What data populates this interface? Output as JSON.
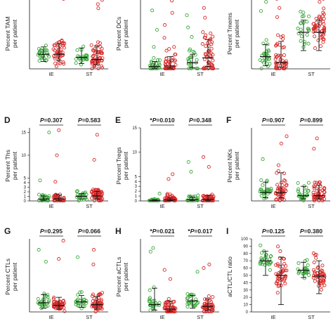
{
  "colors": {
    "ie_green": "#3aa63a",
    "st_red": "#d62828",
    "bar": "#111111"
  },
  "chart_data": [
    {
      "panel": "",
      "type": "scatter",
      "ylabel": "Percent TAM",
      "ylim": [
        0,
        70
      ],
      "yticks": [],
      "groups": [
        "IE",
        "ST"
      ],
      "cols": [
        {
          "group": "IE",
          "median": 14,
          "q1": 7,
          "q3": 21,
          "n": 28,
          "spread": 4,
          "outliers": []
        },
        {
          "group": "IE",
          "median": 14,
          "q1": 8,
          "q3": 24,
          "n": 45,
          "spread": 5,
          "outliers": [
            67
          ]
        },
        {
          "group": "ST",
          "median": 11,
          "q1": 5,
          "q3": 20,
          "n": 24,
          "spread": 4,
          "outliers": []
        },
        {
          "group": "ST",
          "median": 9,
          "q1": 4,
          "q3": 22,
          "n": 50,
          "spread": 5,
          "outliers": [
            58,
            62,
            66
          ]
        }
      ],
      "comparisons": []
    },
    {
      "panel": "",
      "type": "scatter",
      "ylabel": "Percent DCs",
      "ylim": [
        0,
        3
      ],
      "yticks": [],
      "groups": [
        "IE",
        "ST"
      ],
      "cols": [
        {
          "group": "IE",
          "median": 0.1,
          "q1": 0.02,
          "q3": 0.3,
          "n": 26,
          "spread": 0.3,
          "outliers": [
            0.9,
            1.6,
            2.4
          ]
        },
        {
          "group": "IE",
          "median": 0.12,
          "q1": 0.03,
          "q3": 0.5,
          "n": 45,
          "spread": 0.4,
          "outliers": [
            1.8,
            2.3,
            2.8
          ]
        },
        {
          "group": "ST",
          "median": 0.25,
          "q1": 0.05,
          "q3": 0.6,
          "n": 24,
          "spread": 0.4,
          "outliers": [
            1.7,
            2.2
          ]
        },
        {
          "group": "ST",
          "median": 0.45,
          "q1": 0.1,
          "q3": 1.2,
          "n": 50,
          "spread": 0.5,
          "outliers": [
            2.1,
            2.5,
            2.9
          ]
        }
      ],
      "comparisons": []
    },
    {
      "panel": "",
      "type": "scatter",
      "ylabel": "Percent Tmems",
      "ylim": [
        0,
        12
      ],
      "yticks": [],
      "groups": [
        "IE",
        "ST"
      ],
      "cols": [
        {
          "group": "IE",
          "median": 2,
          "q1": 0.5,
          "q3": 4,
          "n": 26,
          "spread": 1.2,
          "outliers": [
            9.5,
            11
          ]
        },
        {
          "group": "IE",
          "median": 1,
          "q1": 0.3,
          "q3": 4.5,
          "n": 45,
          "spread": 1.4,
          "outliers": [
            8.5,
            10,
            11.5
          ]
        },
        {
          "group": "ST",
          "median": 6,
          "q1": 3,
          "q3": 8,
          "n": 24,
          "spread": 1.5,
          "outliers": []
        },
        {
          "group": "ST",
          "median": 6,
          "q1": 3,
          "q3": 8,
          "n": 50,
          "spread": 1.6,
          "outliers": [
            11,
            11.5
          ]
        }
      ],
      "comparisons": []
    },
    {
      "panel": "D",
      "type": "scatter",
      "ylabel": "Percent Ths",
      "ylim": [
        0,
        16
      ],
      "yticks": [
        0,
        1,
        2,
        3,
        4,
        5,
        10,
        15
      ],
      "groups": [
        "IE",
        "ST"
      ],
      "cols": [
        {
          "group": "IE",
          "median": 0.4,
          "q1": 0.1,
          "q3": 1.1,
          "n": 26,
          "spread": 0.5,
          "outliers": [
            4.5,
            15
          ]
        },
        {
          "group": "IE",
          "median": 0.45,
          "q1": 0.1,
          "q3": 1.3,
          "n": 45,
          "spread": 0.6,
          "outliers": [
            4.2,
            10,
            15.5
          ]
        },
        {
          "group": "ST",
          "median": 1,
          "q1": 0.4,
          "q3": 1.6,
          "n": 24,
          "spread": 0.5,
          "outliers": []
        },
        {
          "group": "ST",
          "median": 1.1,
          "q1": 0.4,
          "q3": 2.1,
          "n": 50,
          "spread": 0.7,
          "outliers": [
            9,
            14.5
          ]
        }
      ],
      "comparisons": [
        {
          "group": "IE",
          "star": "",
          "p": "0.307"
        },
        {
          "group": "ST",
          "star": "",
          "p": "0.583"
        }
      ]
    },
    {
      "panel": "E",
      "type": "scatter",
      "ylabel": "Percent Tregs",
      "ylim": [
        0,
        15
      ],
      "yticks": [
        0,
        1,
        2,
        3,
        4,
        5,
        10,
        15
      ],
      "groups": [
        "IE",
        "ST"
      ],
      "cols": [
        {
          "group": "IE",
          "median": 0.08,
          "q1": 0.02,
          "q3": 0.25,
          "n": 26,
          "spread": 0.3,
          "outliers": [
            1.5
          ]
        },
        {
          "group": "IE",
          "median": 0.2,
          "q1": 0.05,
          "q3": 0.6,
          "n": 45,
          "spread": 0.5,
          "outliers": [
            4.5,
            5.5
          ]
        },
        {
          "group": "ST",
          "median": 0.25,
          "q1": 0.06,
          "q3": 0.8,
          "n": 24,
          "spread": 0.5,
          "outliers": [
            6,
            8
          ]
        },
        {
          "group": "ST",
          "median": 0.3,
          "q1": 0.08,
          "q3": 1.1,
          "n": 50,
          "spread": 0.6,
          "outliers": [
            7,
            9
          ]
        }
      ],
      "comparisons": [
        {
          "group": "IE",
          "star": "*",
          "p": "0.010"
        },
        {
          "group": "ST",
          "star": "",
          "p": "0.348"
        }
      ]
    },
    {
      "panel": "F",
      "type": "scatter",
      "ylabel": "Percent NKs",
      "ylim": [
        0,
        70
      ],
      "yticks": [],
      "groups": [
        "IE",
        "ST"
      ],
      "cols": [
        {
          "group": "IE",
          "median": 8,
          "q1": 3,
          "q3": 18,
          "n": 26,
          "spread": 3,
          "outliers": [
            40
          ]
        },
        {
          "group": "IE",
          "median": 8,
          "q1": 3,
          "q3": 27,
          "n": 45,
          "spread": 4,
          "outliers": [
            55,
            62
          ]
        },
        {
          "group": "ST",
          "median": 5,
          "q1": 2,
          "q3": 14,
          "n": 24,
          "spread": 3,
          "outliers": []
        },
        {
          "group": "ST",
          "median": 5,
          "q1": 2,
          "q3": 15,
          "n": 50,
          "spread": 4,
          "outliers": [
            50,
            60
          ]
        }
      ],
      "comparisons": [
        {
          "group": "IE",
          "star": "",
          "p": "0.907"
        },
        {
          "group": "ST",
          "star": "",
          "p": "0.899"
        }
      ]
    },
    {
      "panel": "G",
      "type": "scatter",
      "ylabel": "Percent CTLs",
      "ylim": [
        0,
        80
      ],
      "yticks": [],
      "groups": [
        "IE",
        "ST"
      ],
      "cols": [
        {
          "group": "IE",
          "median": 10,
          "q1": 4,
          "q3": 19,
          "n": 26,
          "spread": 3,
          "outliers": [
            55,
            68
          ]
        },
        {
          "group": "IE",
          "median": 7,
          "q1": 3,
          "q3": 16,
          "n": 45,
          "spread": 3,
          "outliers": [
            58,
            78
          ]
        },
        {
          "group": "ST",
          "median": 11,
          "q1": 5,
          "q3": 18,
          "n": 24,
          "spread": 3,
          "outliers": [
            60
          ]
        },
        {
          "group": "ST",
          "median": 8,
          "q1": 3,
          "q3": 17,
          "n": 50,
          "spread": 3,
          "outliers": [
            52,
            68
          ]
        }
      ],
      "comparisons": [
        {
          "group": "IE",
          "star": "",
          "p": "0.295"
        },
        {
          "group": "ST",
          "star": "",
          "p": "0.066"
        }
      ]
    },
    {
      "panel": "H",
      "type": "scatter",
      "ylabel": "Percent aCTLs",
      "ylim": [
        0,
        40
      ],
      "yticks": [],
      "groups": [
        "IE",
        "ST"
      ],
      "cols": [
        {
          "group": "IE",
          "median": 4,
          "q1": 1,
          "q3": 13,
          "n": 26,
          "spread": 2,
          "outliers": [
            33,
            35
          ]
        },
        {
          "group": "IE",
          "median": 1.5,
          "q1": 0.4,
          "q3": 6,
          "n": 45,
          "spread": 2,
          "outliers": [
            18,
            23
          ]
        },
        {
          "group": "ST",
          "median": 6,
          "q1": 2,
          "q3": 9,
          "n": 24,
          "spread": 2,
          "outliers": [
            22
          ]
        },
        {
          "group": "ST",
          "median": 3,
          "q1": 1,
          "q3": 7,
          "n": 50,
          "spread": 2,
          "outliers": [
            24,
            26
          ]
        }
      ],
      "comparisons": [
        {
          "group": "IE",
          "star": "*",
          "p": "0.021"
        },
        {
          "group": "ST",
          "star": "*",
          "p": "0.017"
        }
      ]
    },
    {
      "panel": "I",
      "type": "scatter",
      "ylabel": "aCTL/CTL ratio",
      "ylim": [
        0,
        100
      ],
      "yticks": [
        0,
        10,
        20,
        30,
        40,
        50,
        60,
        70,
        80,
        90,
        100
      ],
      "groups": [
        "IE",
        "ST"
      ],
      "cols": [
        {
          "group": "IE",
          "median": 70,
          "q1": 50,
          "q3": 83,
          "n": 28,
          "spread": 6,
          "outliers": []
        },
        {
          "group": "IE",
          "median": 50,
          "q1": 10,
          "q3": 75,
          "n": 45,
          "spread": 8,
          "outliers": []
        },
        {
          "group": "ST",
          "median": 57,
          "q1": 47,
          "q3": 68,
          "n": 24,
          "spread": 5,
          "outliers": []
        },
        {
          "group": "ST",
          "median": 49,
          "q1": 25,
          "q3": 70,
          "n": 50,
          "spread": 8,
          "outliers": []
        }
      ],
      "comparisons": [
        {
          "group": "IE",
          "star": "",
          "p": "0.125"
        },
        {
          "group": "ST",
          "star": "",
          "p": "0.380"
        }
      ]
    }
  ]
}
